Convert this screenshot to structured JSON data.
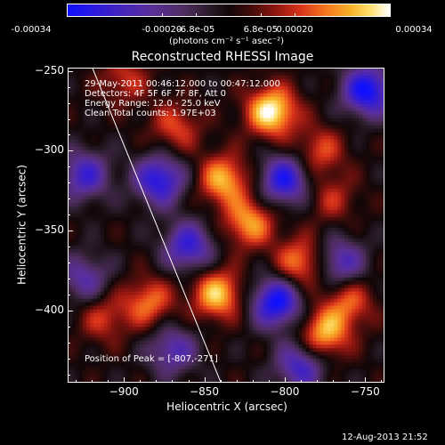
{
  "colorbar": {
    "tick_labels": [
      "-0.00034",
      "-0.00020",
      "-6.8e-05",
      "6.8e-05",
      "0.00020",
      "0.00034"
    ],
    "unit_label": "(photons cm⁻² s⁻¹ asec⁻²)"
  },
  "chart_data": {
    "type": "heatmap",
    "title": "Reconstructed RHESSI Image",
    "xlabel": "Heliocentric X (arcsec)",
    "ylabel": "Heliocentric Y (arcsec)",
    "xlim": [
      -935,
      -738
    ],
    "ylim": [
      -445,
      -248
    ],
    "x_ticks": [
      -900,
      -850,
      -800,
      -750
    ],
    "x_tick_labels": [
      "−900",
      "−850",
      "−800",
      "−750"
    ],
    "y_ticks": [
      -250,
      -300,
      -350,
      -400
    ],
    "y_tick_labels": [
      "−250",
      "−300",
      "−350",
      "−400"
    ],
    "value_range": [
      -0.00034,
      0.00034
    ],
    "peak_position": [
      -807,
      -271
    ],
    "limb_line": [
      [
        -920,
        -248
      ],
      [
        -840,
        -445
      ]
    ],
    "sources": [
      {
        "x": -808,
        "y": -275,
        "value": 0.00034
      },
      {
        "x": -838,
        "y": -318,
        "value": 0.00026
      },
      {
        "x": -822,
        "y": -345,
        "value": 0.00024
      },
      {
        "x": -842,
        "y": -390,
        "value": 0.00028
      },
      {
        "x": -790,
        "y": -370,
        "value": 0.00022
      },
      {
        "x": -775,
        "y": -415,
        "value": 0.00026
      },
      {
        "x": -760,
        "y": -395,
        "value": 0.00018
      },
      {
        "x": -868,
        "y": -285,
        "value": 0.00016
      },
      {
        "x": -778,
        "y": -300,
        "value": 0.00016
      },
      {
        "x": -885,
        "y": -395,
        "value": 0.0002
      },
      {
        "x": -913,
        "y": -405,
        "value": 0.00014
      },
      {
        "x": -770,
        "y": -330,
        "value": 0.00012
      },
      {
        "x": -900,
        "y": -255,
        "value": 0.00014
      },
      {
        "x": -878,
        "y": -318,
        "value": -0.0003
      },
      {
        "x": -925,
        "y": -315,
        "value": -0.00024
      },
      {
        "x": -860,
        "y": -360,
        "value": -0.00026
      },
      {
        "x": -800,
        "y": -318,
        "value": -0.0003
      },
      {
        "x": -805,
        "y": -395,
        "value": -0.00034
      },
      {
        "x": -790,
        "y": -435,
        "value": -0.00024
      },
      {
        "x": -765,
        "y": -370,
        "value": -0.00022
      },
      {
        "x": -748,
        "y": -262,
        "value": -0.00034
      },
      {
        "x": -925,
        "y": -380,
        "value": -0.00018
      },
      {
        "x": -870,
        "y": -425,
        "value": -0.0002
      }
    ]
  },
  "info": {
    "line1": "29-May-2011 00:46:12.000 to 00:47:12.000",
    "line2": "Detectors: 4F 5F 6F 7F 8F, Att 0",
    "line3": "Energy Range: 12.0 - 25.0 keV",
    "line4": "Clean    Total counts: 1.97E+03",
    "peak": "Position of Peak = [-807,-271]"
  },
  "footer": {
    "timestamp": "12-Aug-2013 21:52"
  }
}
